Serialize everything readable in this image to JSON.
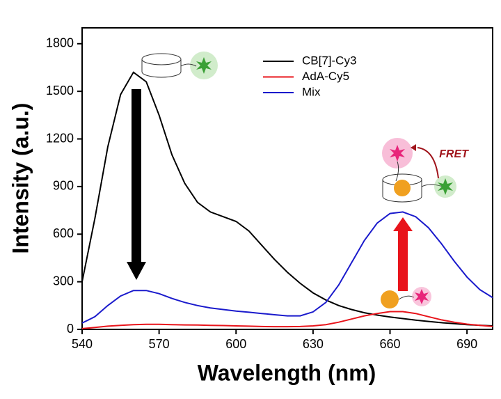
{
  "chart_data": {
    "type": "line",
    "x_label": "Wavelength (nm)",
    "y_label": "Intensity (a.u.)",
    "x": [
      540,
      545,
      550,
      555,
      560,
      565,
      570,
      575,
      580,
      585,
      590,
      595,
      600,
      605,
      610,
      615,
      620,
      625,
      630,
      635,
      640,
      645,
      650,
      655,
      660,
      665,
      670,
      675,
      680,
      685,
      690,
      695,
      700
    ],
    "series": [
      {
        "name": "CB[7]-Cy3",
        "color": "#000000",
        "values": [
          300,
          700,
          1150,
          1480,
          1620,
          1560,
          1350,
          1100,
          920,
          800,
          740,
          710,
          680,
          620,
          530,
          440,
          360,
          290,
          230,
          185,
          150,
          125,
          105,
          90,
          78,
          68,
          58,
          50,
          42,
          36,
          30,
          26,
          22
        ]
      },
      {
        "name": "AdA-Cy5",
        "color": "#e8141b",
        "values": [
          5,
          12,
          20,
          25,
          30,
          32,
          32,
          30,
          28,
          27,
          25,
          24,
          22,
          20,
          18,
          17,
          17,
          18,
          22,
          30,
          45,
          65,
          85,
          100,
          112,
          112,
          100,
          80,
          60,
          45,
          33,
          25,
          18
        ]
      },
      {
        "name": "Mix",
        "color": "#1a1acc",
        "values": [
          40,
          80,
          150,
          210,
          245,
          245,
          225,
          195,
          170,
          150,
          135,
          125,
          115,
          108,
          100,
          92,
          85,
          85,
          110,
          170,
          280,
          420,
          560,
          670,
          730,
          740,
          710,
          640,
          540,
          430,
          330,
          250,
          200
        ]
      }
    ],
    "xlim": [
      540,
      700
    ],
    "xticks": [
      540,
      570,
      600,
      630,
      660,
      690
    ],
    "ylim": [
      0,
      1900
    ],
    "yticks": [
      0,
      300,
      600,
      900,
      1200,
      1500,
      1800
    ],
    "annotation": "FRET"
  }
}
